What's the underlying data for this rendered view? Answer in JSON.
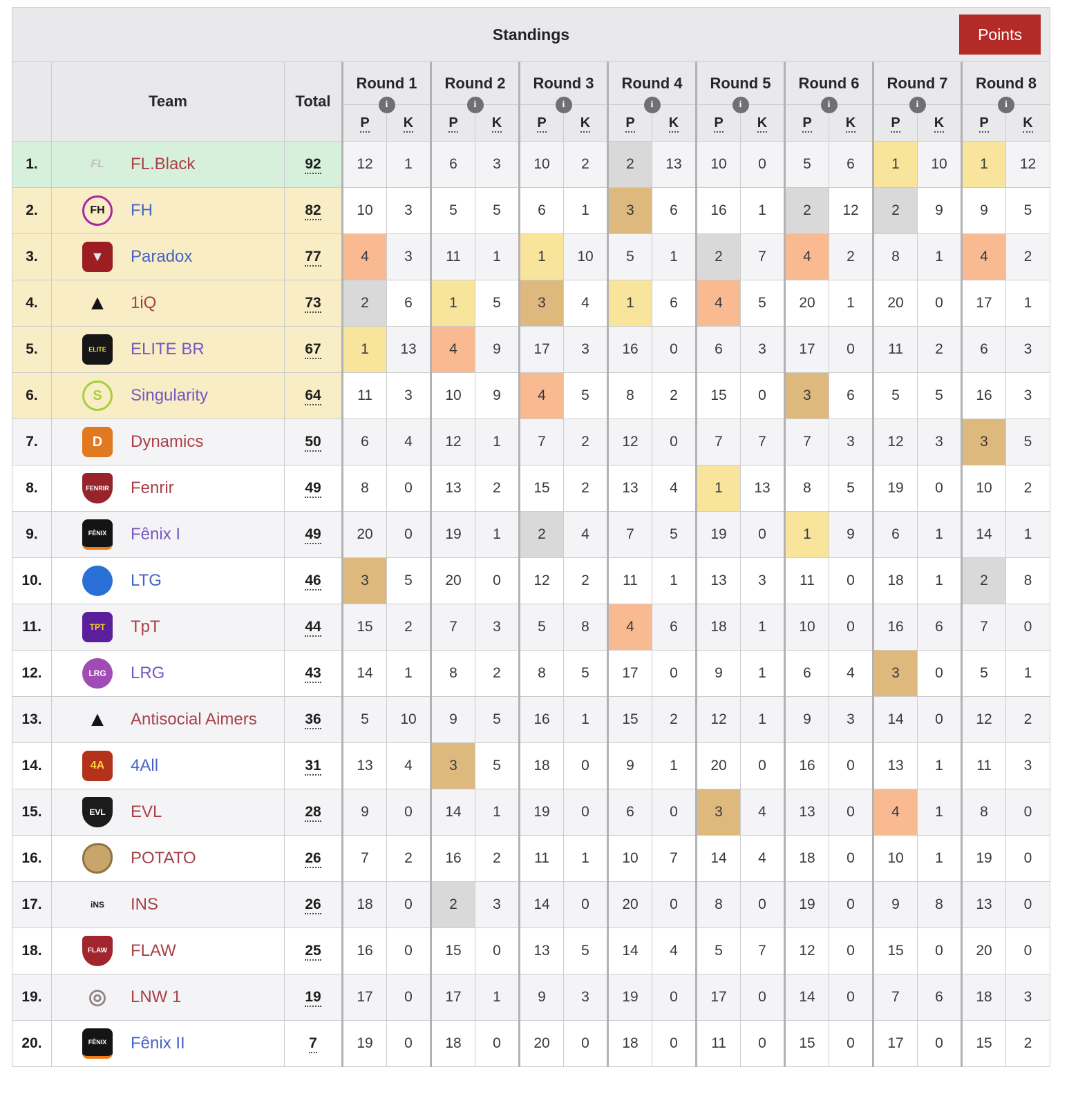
{
  "header": {
    "title": "Standings",
    "points_button": "Points",
    "info_icon": "i",
    "columns": {
      "team": "Team",
      "total": "Total",
      "p": "P",
      "k": "K"
    },
    "rounds": [
      "Round 1",
      "Round 2",
      "Round 3",
      "Round 4",
      "Round 5",
      "Round 6",
      "Round 7",
      "Round 8"
    ]
  },
  "palette": {
    "button_bg": "#b42a26",
    "link_red": "#a84047",
    "link_blue": "#4664c4",
    "link_purple": "#7857c0",
    "leader_row": "#d7f0db",
    "qualified_row": "#f8edc5",
    "place_1": "#f9e49b",
    "place_2": "#d9d9d9",
    "place_3": "#deb97e",
    "place_4": "#f9ba92"
  },
  "teams": [
    {
      "rank": "1.",
      "name": "FL.Black",
      "link": "red",
      "status": "leader",
      "total": "92",
      "logo": {
        "text": "FL",
        "fg": "#bfbfbf",
        "bg": "none",
        "shape": "square",
        "italic": true
      },
      "rounds": [
        [
          12,
          1
        ],
        [
          6,
          3
        ],
        [
          10,
          2
        ],
        [
          2,
          13
        ],
        [
          10,
          0
        ],
        [
          5,
          6
        ],
        [
          1,
          10
        ],
        [
          1,
          12
        ]
      ]
    },
    {
      "rank": "2.",
      "name": "FH",
      "link": "blue",
      "status": "qualified",
      "total": "82",
      "logo": {
        "text": "FH",
        "fg": "#1c1c1c",
        "bg": "none",
        "border": "#ae23a0",
        "shape": "circle"
      },
      "rounds": [
        [
          10,
          3
        ],
        [
          5,
          5
        ],
        [
          6,
          1
        ],
        [
          3,
          6
        ],
        [
          16,
          1
        ],
        [
          2,
          12
        ],
        [
          2,
          9
        ],
        [
          9,
          5
        ]
      ]
    },
    {
      "rank": "3.",
      "name": "Paradox",
      "link": "blue",
      "status": "qualified",
      "total": "77",
      "logo": {
        "text": "▼",
        "fg": "#e3e3ea",
        "bg": "#9c1e22",
        "shape": "square"
      },
      "rounds": [
        [
          4,
          3
        ],
        [
          11,
          1
        ],
        [
          1,
          10
        ],
        [
          5,
          1
        ],
        [
          2,
          7
        ],
        [
          4,
          2
        ],
        [
          8,
          1
        ],
        [
          4,
          2
        ]
      ]
    },
    {
      "rank": "4.",
      "name": "1iQ",
      "link": "red",
      "status": "qualified",
      "total": "73",
      "logo": {
        "text": "▲",
        "fg": "#141414",
        "bg": "none",
        "shape": "square",
        "big": true
      },
      "rounds": [
        [
          2,
          6
        ],
        [
          1,
          5
        ],
        [
          3,
          4
        ],
        [
          1,
          6
        ],
        [
          4,
          5
        ],
        [
          20,
          1
        ],
        [
          20,
          0
        ],
        [
          17,
          1
        ]
      ]
    },
    {
      "rank": "5.",
      "name": "ELITE BR",
      "link": "purple",
      "status": "qualified",
      "total": "67",
      "logo": {
        "text": "ELITE",
        "fg": "#f2ef3d",
        "bg": "#161616",
        "shape": "square"
      },
      "rounds": [
        [
          1,
          13
        ],
        [
          4,
          9
        ],
        [
          17,
          3
        ],
        [
          16,
          0
        ],
        [
          6,
          3
        ],
        [
          17,
          0
        ],
        [
          11,
          2
        ],
        [
          6,
          3
        ]
      ]
    },
    {
      "rank": "6.",
      "name": "Singularity",
      "link": "purple",
      "status": "qualified",
      "total": "64",
      "logo": {
        "text": "S",
        "fg": "#a6cf39",
        "bg": "none",
        "border": "#a6cf39",
        "shape": "circle"
      },
      "rounds": [
        [
          11,
          3
        ],
        [
          10,
          9
        ],
        [
          4,
          5
        ],
        [
          8,
          2
        ],
        [
          15,
          0
        ],
        [
          3,
          6
        ],
        [
          5,
          5
        ],
        [
          16,
          3
        ]
      ]
    },
    {
      "rank": "7.",
      "name": "Dynamics",
      "link": "red",
      "status": "",
      "total": "50",
      "logo": {
        "text": "D",
        "fg": "#ffffff",
        "bg": "#e0791f",
        "shape": "square"
      },
      "rounds": [
        [
          6,
          4
        ],
        [
          12,
          1
        ],
        [
          7,
          2
        ],
        [
          12,
          0
        ],
        [
          7,
          7
        ],
        [
          7,
          3
        ],
        [
          12,
          3
        ],
        [
          3,
          5
        ]
      ]
    },
    {
      "rank": "8.",
      "name": "Fenrir",
      "link": "red",
      "status": "",
      "total": "49",
      "logo": {
        "text": "FENRIR",
        "fg": "#ffffff",
        "bg": "#97242b",
        "shape": "shield"
      },
      "rounds": [
        [
          8,
          0
        ],
        [
          13,
          2
        ],
        [
          15,
          2
        ],
        [
          13,
          4
        ],
        [
          1,
          13
        ],
        [
          8,
          5
        ],
        [
          19,
          0
        ],
        [
          10,
          2
        ]
      ]
    },
    {
      "rank": "9.",
      "name": "Fênix I",
      "link": "purple",
      "status": "",
      "total": "49",
      "logo": {
        "text": "FÊNIX",
        "fg": "#ffffff",
        "bg": "#141414",
        "shape": "square",
        "accent": "#f07b18"
      },
      "rounds": [
        [
          20,
          0
        ],
        [
          19,
          1
        ],
        [
          2,
          4
        ],
        [
          7,
          5
        ],
        [
          19,
          0
        ],
        [
          1,
          9
        ],
        [
          6,
          1
        ],
        [
          14,
          1
        ]
      ]
    },
    {
      "rank": "10.",
      "name": "LTG",
      "link": "blue",
      "status": "",
      "total": "46",
      "logo": {
        "text": "",
        "fg": "#ffffff",
        "bg": "#2a6fd6",
        "shape": "circle"
      },
      "rounds": [
        [
          3,
          5
        ],
        [
          20,
          0
        ],
        [
          12,
          2
        ],
        [
          11,
          1
        ],
        [
          13,
          3
        ],
        [
          11,
          0
        ],
        [
          18,
          1
        ],
        [
          2,
          8
        ]
      ]
    },
    {
      "rank": "11.",
      "name": "TpT",
      "link": "red",
      "status": "",
      "total": "44",
      "logo": {
        "text": "TPT",
        "fg": "#f3cf2e",
        "bg": "#5c1f9c",
        "shape": "square"
      },
      "rounds": [
        [
          15,
          2
        ],
        [
          7,
          3
        ],
        [
          5,
          8
        ],
        [
          4,
          6
        ],
        [
          18,
          1
        ],
        [
          10,
          0
        ],
        [
          16,
          6
        ],
        [
          7,
          0
        ]
      ]
    },
    {
      "rank": "12.",
      "name": "LRG",
      "link": "purple",
      "status": "",
      "total": "43",
      "logo": {
        "text": "LRG",
        "fg": "#ffffff",
        "bg": "#a14cb4",
        "shape": "circle"
      },
      "rounds": [
        [
          14,
          1
        ],
        [
          8,
          2
        ],
        [
          8,
          5
        ],
        [
          17,
          0
        ],
        [
          9,
          1
        ],
        [
          6,
          4
        ],
        [
          3,
          0
        ],
        [
          5,
          1
        ]
      ]
    },
    {
      "rank": "13.",
      "name": "Antisocial Aimers",
      "link": "red",
      "status": "",
      "total": "36",
      "logo": {
        "text": "▲",
        "fg": "#141414",
        "bg": "none",
        "shape": "square",
        "big": true
      },
      "rounds": [
        [
          5,
          10
        ],
        [
          9,
          5
        ],
        [
          16,
          1
        ],
        [
          15,
          2
        ],
        [
          12,
          1
        ],
        [
          9,
          3
        ],
        [
          14,
          0
        ],
        [
          12,
          2
        ]
      ]
    },
    {
      "rank": "14.",
      "name": "4All",
      "link": "blue",
      "status": "",
      "total": "31",
      "logo": {
        "text": "4A",
        "fg": "#ffd23e",
        "bg": "#b3321c",
        "shape": "square"
      },
      "rounds": [
        [
          13,
          4
        ],
        [
          3,
          5
        ],
        [
          18,
          0
        ],
        [
          9,
          1
        ],
        [
          20,
          0
        ],
        [
          16,
          0
        ],
        [
          13,
          1
        ],
        [
          11,
          3
        ]
      ]
    },
    {
      "rank": "15.",
      "name": "EVL",
      "link": "red",
      "status": "",
      "total": "28",
      "logo": {
        "text": "EVL",
        "fg": "#ffffff",
        "bg": "#1b1b1b",
        "shape": "shield"
      },
      "rounds": [
        [
          9,
          0
        ],
        [
          14,
          1
        ],
        [
          19,
          0
        ],
        [
          6,
          0
        ],
        [
          3,
          4
        ],
        [
          13,
          0
        ],
        [
          4,
          1
        ],
        [
          8,
          0
        ]
      ]
    },
    {
      "rank": "16.",
      "name": "POTATO",
      "link": "red",
      "status": "",
      "total": "26",
      "logo": {
        "text": "",
        "fg": "#6b5322",
        "bg": "#c7a56b",
        "border": "#8f7340",
        "shape": "potato"
      },
      "rounds": [
        [
          7,
          2
        ],
        [
          16,
          2
        ],
        [
          11,
          1
        ],
        [
          10,
          7
        ],
        [
          14,
          4
        ],
        [
          18,
          0
        ],
        [
          10,
          1
        ],
        [
          19,
          0
        ]
      ]
    },
    {
      "rank": "17.",
      "name": "INS",
      "link": "red",
      "status": "",
      "total": "26",
      "logo": {
        "text": "iNS",
        "fg": "#161616",
        "bg": "none",
        "shape": "square"
      },
      "rounds": [
        [
          18,
          0
        ],
        [
          2,
          3
        ],
        [
          14,
          0
        ],
        [
          20,
          0
        ],
        [
          8,
          0
        ],
        [
          19,
          0
        ],
        [
          9,
          8
        ],
        [
          13,
          0
        ]
      ]
    },
    {
      "rank": "18.",
      "name": "FLAW",
      "link": "red",
      "status": "",
      "total": "25",
      "logo": {
        "text": "FLAW",
        "fg": "#ffffff",
        "bg": "#a2242c",
        "shape": "shield"
      },
      "rounds": [
        [
          16,
          0
        ],
        [
          15,
          0
        ],
        [
          13,
          5
        ],
        [
          14,
          4
        ],
        [
          5,
          7
        ],
        [
          12,
          0
        ],
        [
          15,
          0
        ],
        [
          20,
          0
        ]
      ]
    },
    {
      "rank": "19.",
      "name": "LNW 1",
      "link": "red",
      "status": "",
      "total": "19",
      "logo": {
        "text": "◎",
        "fg": "#8d8380",
        "bg": "none",
        "shape": "circle",
        "big": true
      },
      "rounds": [
        [
          17,
          0
        ],
        [
          17,
          1
        ],
        [
          9,
          3
        ],
        [
          19,
          0
        ],
        [
          17,
          0
        ],
        [
          14,
          0
        ],
        [
          7,
          6
        ],
        [
          18,
          3
        ]
      ]
    },
    {
      "rank": "20.",
      "name": "Fênix II",
      "link": "blue",
      "status": "",
      "total": "7",
      "logo": {
        "text": "FÊNIX",
        "fg": "#ffffff",
        "bg": "#141414",
        "shape": "square",
        "accent": "#f07b18"
      },
      "rounds": [
        [
          19,
          0
        ],
        [
          18,
          0
        ],
        [
          20,
          0
        ],
        [
          18,
          0
        ],
        [
          11,
          0
        ],
        [
          15,
          0
        ],
        [
          17,
          0
        ],
        [
          15,
          2
        ]
      ]
    }
  ]
}
